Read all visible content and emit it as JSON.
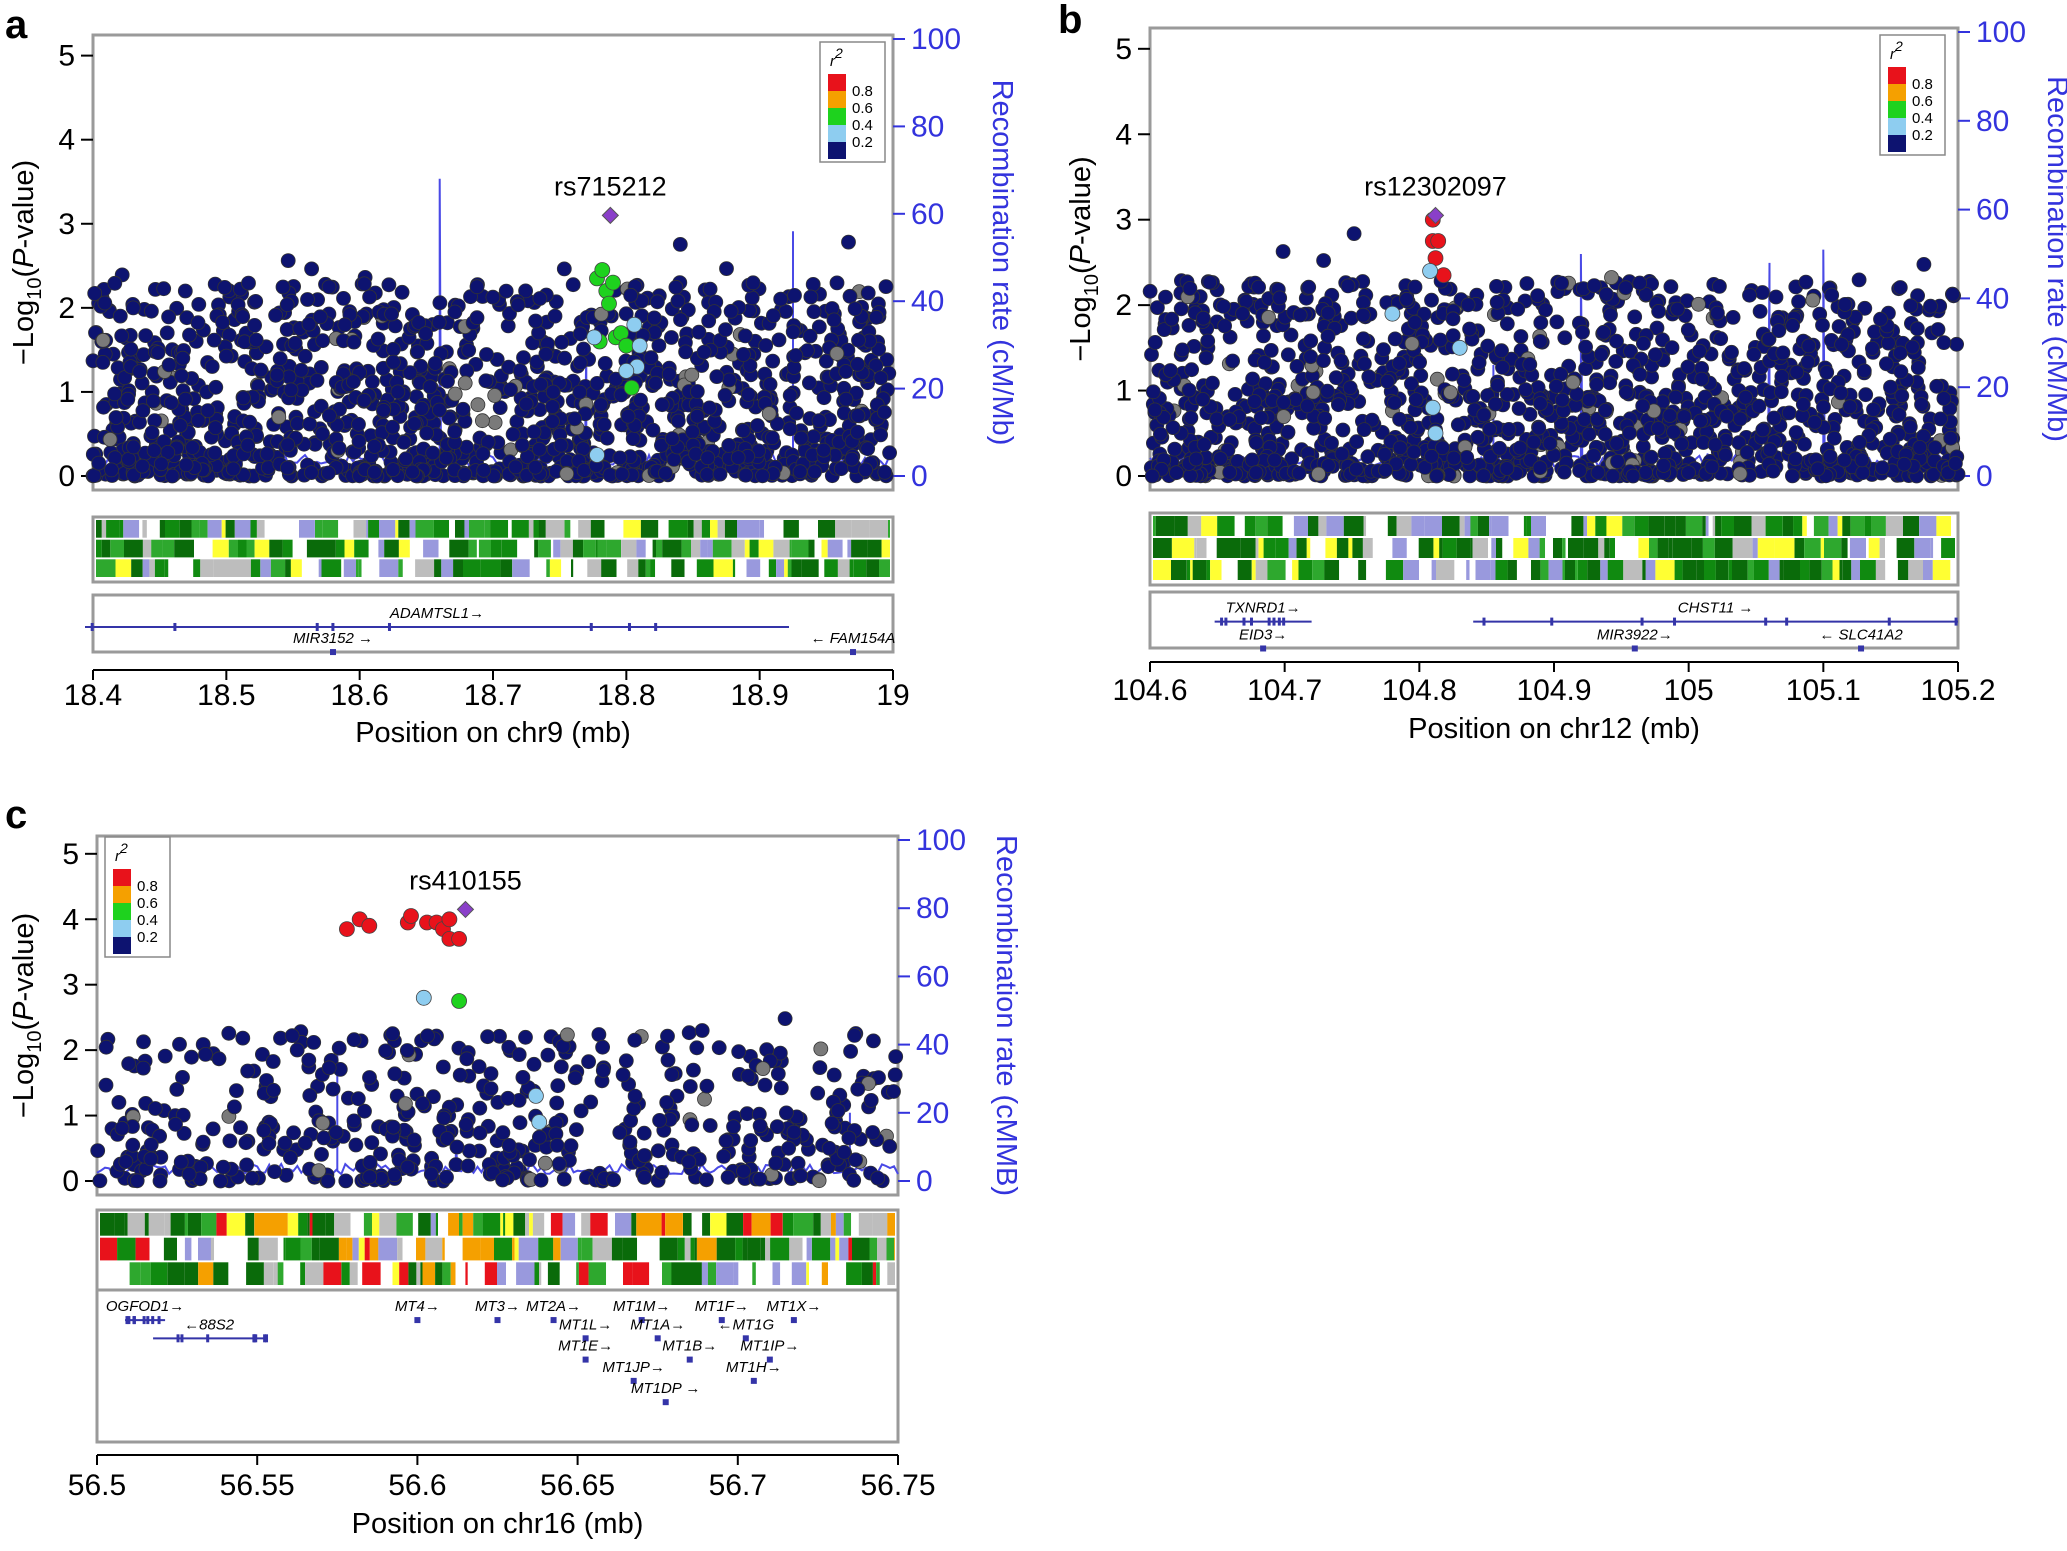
{
  "figure": {
    "panels": [
      {
        "label": "a",
        "lead_snp": "rs715212",
        "legend_title": "r",
        "legend_sup": "2",
        "legend_ticks": [
          "0.8",
          "0.6",
          "0.4",
          "0.2"
        ],
        "yticks": [
          "0",
          "1",
          "2",
          "3",
          "4",
          "5"
        ],
        "rticks": [
          "0",
          "20",
          "40",
          "60",
          "80",
          "100"
        ],
        "xticks": [
          "18.4",
          "18.5",
          "18.6",
          "18.7",
          "18.8",
          "18.9",
          "19"
        ],
        "ylabel_prefix": "−Log",
        "ylabel_sub": "10",
        "ylabel_mid": "(",
        "ylabel_italic": "P",
        "ylabel_suffix": "-value)",
        "rlabel": "Recombination rate (cM/Mb)",
        "xlabel": "Position on chr9 (mb)",
        "genes": [
          "ADAMTSL1→",
          "MIR3152 →",
          "← FAM154A"
        ]
      },
      {
        "label": "b",
        "lead_snp": "rs12302097",
        "legend_title": "r",
        "legend_sup": "2",
        "legend_ticks": [
          "0.8",
          "0.6",
          "0.4",
          "0.2"
        ],
        "yticks": [
          "0",
          "1",
          "2",
          "3",
          "4",
          "5"
        ],
        "rticks": [
          "0",
          "20",
          "40",
          "60",
          "80",
          "100"
        ],
        "xticks": [
          "104.6",
          "104.7",
          "104.8",
          "104.9",
          "105",
          "105.1",
          "105.2"
        ],
        "ylabel_prefix": "−Log",
        "ylabel_sub": "10",
        "ylabel_mid": "(",
        "ylabel_italic": "P",
        "ylabel_suffix": "-value)",
        "rlabel": "Recombination rate (cM/Mb)",
        "xlabel": "Position on chr12 (mb)",
        "genes": [
          "TXNRD1→",
          "EID3→",
          "CHST11 →",
          "MIR3922→",
          "← SLC41A2"
        ]
      },
      {
        "label": "c",
        "lead_snp": "rs410155",
        "legend_title": "r",
        "legend_sup": "2",
        "legend_ticks": [
          "0.8",
          "0.6",
          "0.4",
          "0.2"
        ],
        "yticks": [
          "0",
          "1",
          "2",
          "3",
          "4",
          "5"
        ],
        "rticks": [
          "0",
          "20",
          "40",
          "60",
          "80",
          "100"
        ],
        "xticks": [
          "56.5",
          "56.55",
          "56.6",
          "56.65",
          "56.7",
          "56.75"
        ],
        "ylabel_prefix": "−Log",
        "ylabel_sub": "10",
        "ylabel_mid": "(",
        "ylabel_italic": "P",
        "ylabel_suffix": "-value)",
        "rlabel": "Recombination rate (cMMB)",
        "xlabel": "Position on chr16 (mb)",
        "genes": [
          "OGFOD1→",
          "←88S2",
          "MT4→",
          "MT3→",
          "MT2A→",
          "MT1M→",
          "MT1F→",
          "MT1X→",
          "MT1L→",
          "MT1A→",
          "←MT1G",
          "MT1E→",
          "MT1B→",
          "MT1IP→",
          "MT1JP→",
          "MT1H→",
          "MT1DP →"
        ]
      }
    ]
  },
  "colors": {
    "ld_red": "#e8121b",
    "ld_orange": "#f5a000",
    "ld_green": "#1ed21e",
    "ld_lightblue": "#8ecdf0",
    "ld_navy": "#0d1370",
    "lead": "#8a3fc9",
    "recomb": "#4a4ae6",
    "grey": "#7a7a7a"
  },
  "chart_data": [
    {
      "type": "scatter",
      "panel": "a",
      "xlabel": "Position on chr9 (mb)",
      "ylabel": "-Log10(P-value)",
      "xlim": [
        18.4,
        19.0
      ],
      "ylim": [
        0,
        5
      ],
      "y2lim": [
        0,
        100
      ],
      "y2label": "Recombination rate (cM/Mb)",
      "lead": {
        "name": "rs715212",
        "x": 18.788,
        "y": 3.1
      },
      "highlight_points": [
        {
          "x": 18.778,
          "y": 2.35,
          "r2": "green"
        },
        {
          "x": 18.782,
          "y": 2.45,
          "r2": "green"
        },
        {
          "x": 18.785,
          "y": 2.2,
          "r2": "green"
        },
        {
          "x": 18.79,
          "y": 2.3,
          "r2": "green"
        },
        {
          "x": 18.787,
          "y": 2.05,
          "r2": "green"
        },
        {
          "x": 18.792,
          "y": 1.65,
          "r2": "green"
        },
        {
          "x": 18.796,
          "y": 1.7,
          "r2": "green"
        },
        {
          "x": 18.8,
          "y": 1.55,
          "r2": "green"
        },
        {
          "x": 18.804,
          "y": 1.05,
          "r2": "green"
        },
        {
          "x": 18.78,
          "y": 1.6,
          "r2": "green"
        },
        {
          "x": 18.776,
          "y": 1.65,
          "r2": "lightblue"
        },
        {
          "x": 18.806,
          "y": 1.8,
          "r2": "lightblue"
        },
        {
          "x": 18.81,
          "y": 1.55,
          "r2": "lightblue"
        },
        {
          "x": 18.808,
          "y": 1.3,
          "r2": "lightblue"
        },
        {
          "x": 18.778,
          "y": 0.25,
          "r2": "lightblue"
        },
        {
          "x": 18.8,
          "y": 1.25,
          "r2": "lightblue"
        }
      ],
      "recomb_peaks": [
        {
          "x": 18.66,
          "rate": 68
        },
        {
          "x": 18.77,
          "rate": 30
        },
        {
          "x": 18.925,
          "rate": 56
        }
      ]
    },
    {
      "type": "scatter",
      "panel": "b",
      "xlabel": "Position on chr12 (mb)",
      "ylabel": "-Log10(P-value)",
      "xlim": [
        104.6,
        105.2
      ],
      "ylim": [
        0,
        5
      ],
      "y2lim": [
        0,
        100
      ],
      "y2label": "Recombination rate (cM/Mb)",
      "lead": {
        "name": "rs12302097",
        "x": 104.812,
        "y": 3.05
      },
      "highlight_points": [
        {
          "x": 104.81,
          "y": 3.0,
          "r2": "red"
        },
        {
          "x": 104.81,
          "y": 2.75,
          "r2": "red"
        },
        {
          "x": 104.814,
          "y": 2.75,
          "r2": "red"
        },
        {
          "x": 104.812,
          "y": 2.55,
          "r2": "red"
        },
        {
          "x": 104.818,
          "y": 2.35,
          "r2": "red"
        },
        {
          "x": 104.808,
          "y": 2.4,
          "r2": "lightblue"
        },
        {
          "x": 104.78,
          "y": 1.9,
          "r2": "lightblue"
        },
        {
          "x": 104.83,
          "y": 1.5,
          "r2": "lightblue"
        },
        {
          "x": 104.81,
          "y": 0.8,
          "r2": "lightblue"
        },
        {
          "x": 104.812,
          "y": 0.5,
          "r2": "lightblue"
        }
      ],
      "recomb_peaks": [
        {
          "x": 104.855,
          "rate": 25
        },
        {
          "x": 104.92,
          "rate": 50
        },
        {
          "x": 105.06,
          "rate": 48
        },
        {
          "x": 105.1,
          "rate": 51
        }
      ]
    },
    {
      "type": "scatter",
      "panel": "c",
      "xlabel": "Position on chr16 (mb)",
      "ylabel": "-Log10(P-value)",
      "xlim": [
        56.5,
        56.75
      ],
      "ylim": [
        0,
        5
      ],
      "y2lim": [
        0,
        100
      ],
      "y2label": "Recombination rate (cMMB)",
      "lead": {
        "name": "rs410155",
        "x": 56.615,
        "y": 4.15
      },
      "highlight_points": [
        {
          "x": 56.578,
          "y": 3.85,
          "r2": "red"
        },
        {
          "x": 56.582,
          "y": 4.0,
          "r2": "red"
        },
        {
          "x": 56.585,
          "y": 3.9,
          "r2": "red"
        },
        {
          "x": 56.597,
          "y": 3.95,
          "r2": "red"
        },
        {
          "x": 56.598,
          "y": 4.05,
          "r2": "red"
        },
        {
          "x": 56.603,
          "y": 3.95,
          "r2": "red"
        },
        {
          "x": 56.606,
          "y": 3.95,
          "r2": "red"
        },
        {
          "x": 56.608,
          "y": 3.85,
          "r2": "red"
        },
        {
          "x": 56.61,
          "y": 3.7,
          "r2": "red"
        },
        {
          "x": 56.613,
          "y": 3.7,
          "r2": "red"
        },
        {
          "x": 56.61,
          "y": 4.0,
          "r2": "red"
        },
        {
          "x": 56.602,
          "y": 2.8,
          "r2": "lightblue"
        },
        {
          "x": 56.613,
          "y": 2.75,
          "r2": "green"
        },
        {
          "x": 56.637,
          "y": 1.3,
          "r2": "lightblue"
        },
        {
          "x": 56.638,
          "y": 0.9,
          "r2": "lightblue"
        }
      ],
      "recomb_peaks": [
        {
          "x": 56.575,
          "rate": 40
        },
        {
          "x": 56.612,
          "rate": 12
        },
        {
          "x": 56.735,
          "rate": 20
        }
      ]
    }
  ]
}
